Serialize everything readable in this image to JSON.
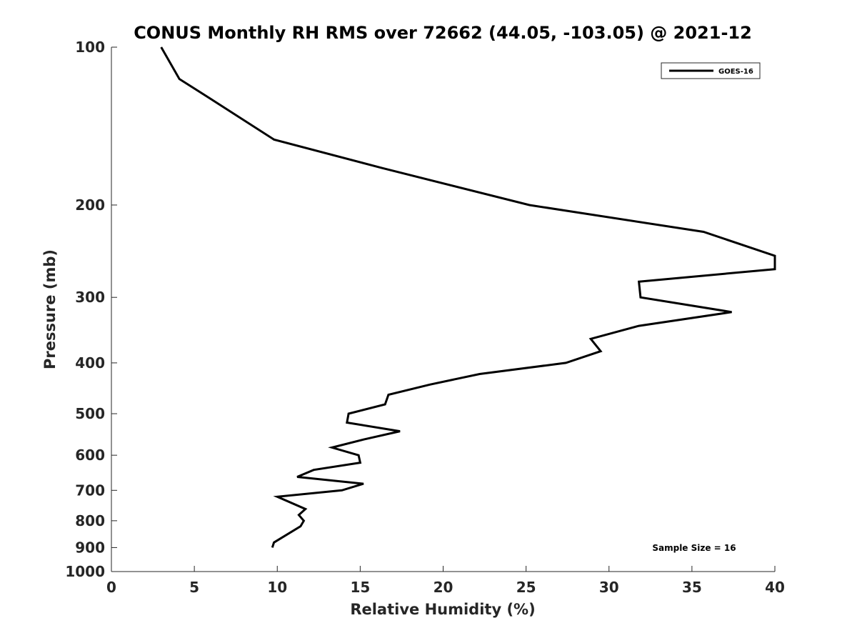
{
  "chart_data": {
    "type": "line",
    "title": "CONUS Monthly RH RMS over 72662 (44.05, -103.05) @ 2021-12",
    "xlabel": "Relative Humidity (%)",
    "ylabel": "Pressure (mb)",
    "xlim": [
      0,
      40
    ],
    "ylim": [
      100,
      1000
    ],
    "y_scale": "log",
    "y_reversed": true,
    "x_ticks": [
      "0",
      "5",
      "10",
      "15",
      "20",
      "25",
      "30",
      "35",
      "40"
    ],
    "y_ticks": [
      "100",
      "200",
      "300",
      "400",
      "500",
      "600",
      "700",
      "800",
      "900",
      "1000"
    ],
    "grid": false,
    "legend_position": "top-right",
    "annotation": "Sample Size = 16",
    "line_color": "#000000",
    "series": [
      {
        "name": "GOES-16",
        "points": [
          {
            "x": 9.7,
            "y": 900
          },
          {
            "x": 9.8,
            "y": 880
          },
          {
            "x": 11.4,
            "y": 820
          },
          {
            "x": 11.6,
            "y": 800
          },
          {
            "x": 11.3,
            "y": 780
          },
          {
            "x": 11.7,
            "y": 760
          },
          {
            "x": 10.0,
            "y": 720
          },
          {
            "x": 13.9,
            "y": 700
          },
          {
            "x": 15.2,
            "y": 680
          },
          {
            "x": 11.2,
            "y": 660
          },
          {
            "x": 12.2,
            "y": 640
          },
          {
            "x": 15.0,
            "y": 620
          },
          {
            "x": 14.9,
            "y": 600
          },
          {
            "x": 13.3,
            "y": 580
          },
          {
            "x": 15.2,
            "y": 560
          },
          {
            "x": 17.4,
            "y": 540
          },
          {
            "x": 14.2,
            "y": 520
          },
          {
            "x": 14.3,
            "y": 500
          },
          {
            "x": 16.5,
            "y": 480
          },
          {
            "x": 16.7,
            "y": 460
          },
          {
            "x": 19.2,
            "y": 440
          },
          {
            "x": 22.2,
            "y": 420
          },
          {
            "x": 27.4,
            "y": 400
          },
          {
            "x": 29.5,
            "y": 380
          },
          {
            "x": 28.9,
            "y": 360
          },
          {
            "x": 31.8,
            "y": 340
          },
          {
            "x": 37.4,
            "y": 320
          },
          {
            "x": 31.9,
            "y": 300
          },
          {
            "x": 31.8,
            "y": 280
          },
          {
            "x": 40.0,
            "y": 265
          },
          {
            "x": 40.0,
            "y": 250
          },
          {
            "x": 35.7,
            "y": 225
          },
          {
            "x": 25.2,
            "y": 200
          },
          {
            "x": 16.3,
            "y": 170
          },
          {
            "x": 9.8,
            "y": 150
          },
          {
            "x": 5.9,
            "y": 125
          },
          {
            "x": 4.1,
            "y": 115
          },
          {
            "x": 3.0,
            "y": 100
          }
        ]
      }
    ]
  }
}
